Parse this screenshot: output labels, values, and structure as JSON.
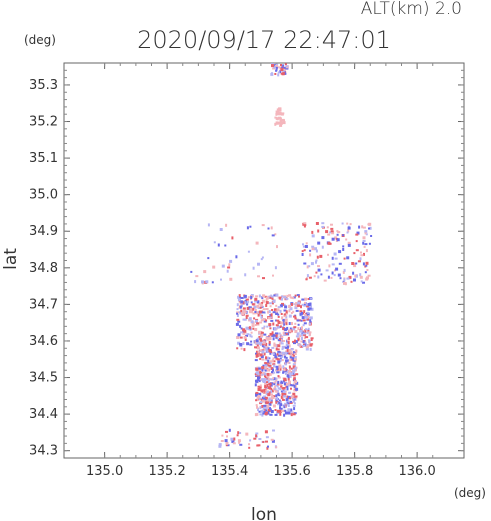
{
  "header": {
    "altitude_label": "ALT(km) 2.0",
    "timestamp": "2020/09/17 22:47:01"
  },
  "chart_data": {
    "type": "scatter",
    "title": "2020/09/17 22:47:01",
    "xlabel": "lon",
    "ylabel": "lat",
    "x_unit": "(deg)",
    "y_unit": "(deg)",
    "xlim": [
      134.87,
      136.15
    ],
    "ylim": [
      34.28,
      35.36
    ],
    "x_ticks": [
      "135.0",
      "135.2",
      "135.4",
      "135.6",
      "135.8",
      "136.0"
    ],
    "y_ticks": [
      "34.3",
      "34.4",
      "34.5",
      "34.6",
      "34.7",
      "34.8",
      "34.9",
      "35.0",
      "35.1",
      "35.2",
      "35.3"
    ],
    "grid": false,
    "colors": {
      "positive": "#e8606a",
      "negative": "#6a6ae8",
      "light_positive": "#f4b6bc",
      "light_negative": "#b6b6f4"
    },
    "clusters": [
      {
        "name": "north-patch",
        "lon": [
          135.54,
          135.57
        ],
        "lat": [
          35.19,
          35.24
        ],
        "density": "sparse-pink"
      },
      {
        "name": "north-top",
        "lon": [
          135.53,
          135.58
        ],
        "lat": [
          35.33,
          35.36
        ],
        "density": "sparse"
      },
      {
        "name": "ne-arc",
        "lon": [
          135.63,
          135.85
        ],
        "lat": [
          34.76,
          34.93
        ],
        "density": "medium"
      },
      {
        "name": "west-scatter",
        "lon": [
          135.27,
          135.55
        ],
        "lat": [
          34.76,
          34.94
        ],
        "density": "sparse"
      },
      {
        "name": "central",
        "lon": [
          135.42,
          135.66
        ],
        "lat": [
          34.58,
          34.73
        ],
        "density": "dense"
      },
      {
        "name": "south-column",
        "lon": [
          135.48,
          135.61
        ],
        "lat": [
          34.4,
          34.58
        ],
        "density": "dense"
      },
      {
        "name": "south-tip",
        "lon": [
          135.36,
          135.55
        ],
        "lat": [
          34.31,
          34.36
        ],
        "density": "sparse"
      }
    ]
  }
}
